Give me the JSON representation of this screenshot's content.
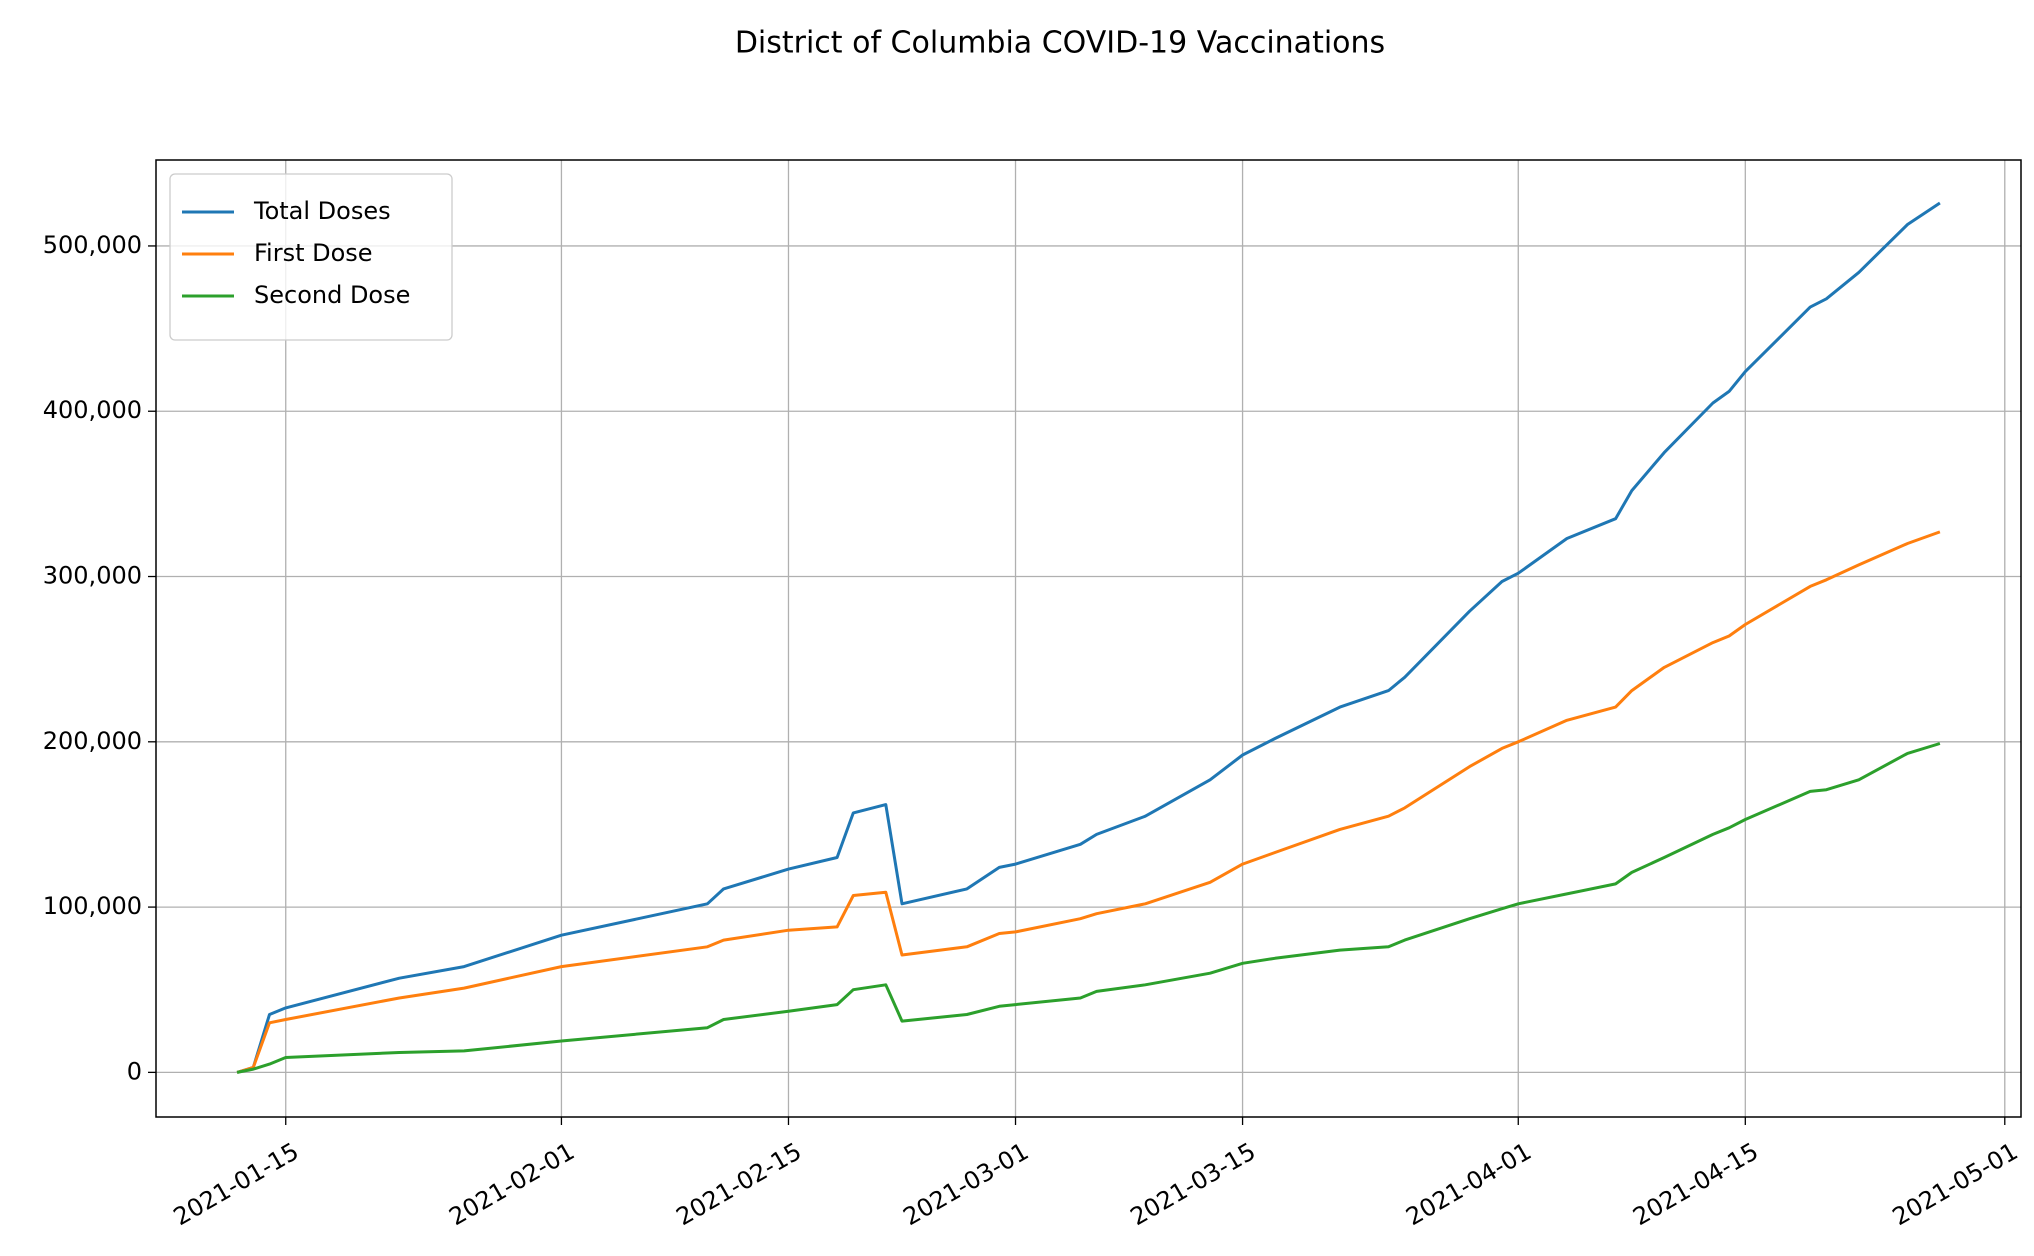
{
  "chart_data": {
    "type": "line",
    "title": "District of Columbia COVID-19 Vaccinations",
    "x": [
      "2021-01-12",
      "2021-01-13",
      "2021-01-14",
      "2021-01-15",
      "2021-01-22",
      "2021-01-26",
      "2021-02-01",
      "2021-02-10",
      "2021-02-11",
      "2021-02-15",
      "2021-02-18",
      "2021-02-19",
      "2021-02-21",
      "2021-02-22",
      "2021-02-26",
      "2021-02-28",
      "2021-03-01",
      "2021-03-05",
      "2021-03-06",
      "2021-03-09",
      "2021-03-13",
      "2021-03-15",
      "2021-03-17",
      "2021-03-21",
      "2021-03-24",
      "2021-03-25",
      "2021-03-29",
      "2021-03-31",
      "2021-04-01",
      "2021-04-04",
      "2021-04-07",
      "2021-04-08",
      "2021-04-10",
      "2021-04-13",
      "2021-04-14",
      "2021-04-15",
      "2021-04-19",
      "2021-04-20",
      "2021-04-22",
      "2021-04-25",
      "2021-04-27"
    ],
    "series": [
      {
        "name": "Total Doses",
        "color": "#1f77b4",
        "values": [
          0,
          3000,
          35000,
          39000,
          57000,
          64000,
          83000,
          102000,
          111000,
          123000,
          130000,
          157000,
          162000,
          102000,
          111000,
          124000,
          126000,
          138000,
          144000,
          155000,
          177000,
          192000,
          202000,
          221000,
          231000,
          239000,
          279000,
          297000,
          302000,
          323000,
          335000,
          352000,
          375000,
          405000,
          412000,
          424000,
          463000,
          468000,
          484000,
          513000,
          526000
        ]
      },
      {
        "name": "First Dose",
        "color": "#ff7f0e",
        "values": [
          0,
          3000,
          30000,
          32000,
          45000,
          51000,
          64000,
          76000,
          80000,
          86000,
          88000,
          107000,
          109000,
          71000,
          76000,
          84000,
          85000,
          93000,
          96000,
          102000,
          115000,
          126000,
          133000,
          147000,
          155000,
          160000,
          185000,
          196000,
          200000,
          213000,
          221000,
          231000,
          245000,
          260000,
          264000,
          271000,
          294000,
          298000,
          307000,
          320000,
          327000
        ]
      },
      {
        "name": "Second Dose",
        "color": "#2ca02c",
        "values": [
          0,
          2000,
          5000,
          9000,
          12000,
          13000,
          19000,
          27000,
          32000,
          37000,
          41000,
          50000,
          53000,
          31000,
          35000,
          40000,
          41000,
          45000,
          49000,
          53000,
          60000,
          66000,
          69000,
          74000,
          76000,
          80000,
          93000,
          99000,
          102000,
          108000,
          114000,
          121000,
          130000,
          144000,
          148000,
          153000,
          170000,
          171000,
          177000,
          193000,
          199000
        ]
      }
    ],
    "xlim": [
      "2021-01-07",
      "2021-05-02"
    ],
    "xticks": [
      "2021-01-15",
      "2021-02-01",
      "2021-02-15",
      "2021-03-01",
      "2021-03-15",
      "2021-04-01",
      "2021-04-15",
      "2021-05-01"
    ],
    "ylim": [
      -27000,
      552000
    ],
    "yticks": [
      0,
      {
        "value": 100000,
        "label": "100,000"
      },
      {
        "value": 200000,
        "label": "200,000"
      },
      {
        "value": 300000,
        "label": "300,000"
      },
      {
        "value": 400000,
        "label": "400,000"
      },
      {
        "value": 500000,
        "label": "500,000"
      }
    ],
    "grid": true,
    "legend": "upper left"
  }
}
